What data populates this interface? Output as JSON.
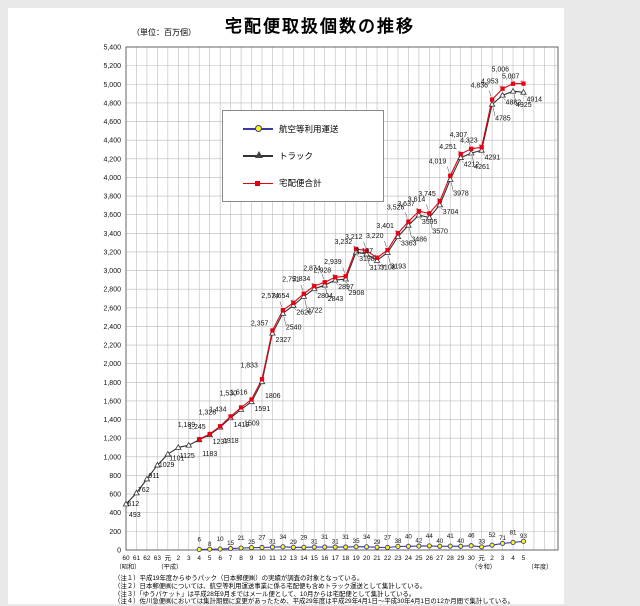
{
  "title": "宅配便取扱個数の推移",
  "unit_label": "（単位：百万個）",
  "legend": {
    "air": "航空等利用運送",
    "truck": "トラック",
    "total": "宅配便合計"
  },
  "x_axis": {
    "era_showa": "（昭和）",
    "era_heisei": "（平成）",
    "era_reiwa": "（令和）",
    "unit_suffix": "（年度）"
  },
  "colors": {
    "background": "#e9e9e9",
    "grid": "#bbbbbb",
    "total_line": "#e60012",
    "truck_line": "#333333",
    "air_line": "#3a3aa0",
    "air_marker_fill": "#ffff00"
  },
  "notes": [
    "（注１）平成19年度からゆうパック（日本郵便㈱）の実績が調査の対象となっている。",
    "（注２）日本郵便㈱については、航空等利用運送事業に係る宅配便も含めトラック運送として集計している。",
    "（注３）「ゆうパケット」は平成28年9月まではメール便として、10月からは宅配便として集計している。",
    "（注４）佐川急便㈱においては集計期間に変更があったため、平成29年度は平成29年4月1日～平成30年4月1日の12か月間で集計している。"
  ],
  "chart_data": {
    "type": "line",
    "title": "宅配便取扱個数の推移",
    "unit": "百万個",
    "ylim": [
      0,
      5400
    ],
    "y_step": 200,
    "grid": true,
    "legend_position": "upper-left-inside",
    "x_labels": [
      "60",
      "61",
      "62",
      "63",
      "元",
      "2",
      "3",
      "4",
      "5",
      "6",
      "7",
      "8",
      "9",
      "10",
      "11",
      "12",
      "13",
      "14",
      "15",
      "16",
      "17",
      "18",
      "19",
      "20",
      "21",
      "22",
      "23",
      "24",
      "25",
      "26",
      "27",
      "28",
      "29",
      "30",
      "元",
      "2",
      "3",
      "4",
      "5"
    ],
    "era_markers": [
      {
        "label": "（昭和）",
        "index": 0
      },
      {
        "label": "（平成）",
        "index": 4
      },
      {
        "label": "（令和）",
        "index": 34
      }
    ],
    "series": [
      {
        "name": "航空等利用運送",
        "marker": "circle",
        "line_color": "#3a3aa0",
        "marker_fill": "#ffff00",
        "start_index": 7,
        "values": [
          6,
          8,
          10,
          15,
          21,
          25,
          27,
          31,
          34,
          29,
          29,
          31,
          31,
          31,
          31,
          35,
          34,
          29,
          27,
          38,
          40,
          42,
          44,
          40,
          41,
          40,
          46,
          33,
          52,
          71,
          81,
          93
        ]
      },
      {
        "name": "トラック",
        "marker": "triangle",
        "line_color": "#333333",
        "marker_fill": "#ffffff",
        "start_index": 0,
        "values": [
          493,
          612,
          762,
          911,
          1029,
          1101,
          1125,
          1183,
          1237,
          1318,
          1419,
          1509,
          1591,
          1806,
          2327,
          2540,
          2626,
          2722,
          2804,
          2843,
          2897,
          2908,
          3198,
          3177,
          3108,
          3193,
          3363,
          3486,
          3595,
          3570,
          3704,
          3978,
          4212,
          4261,
          4291,
          4785,
          4882,
          4925,
          4914
        ]
      },
      {
        "name": "宅配便合計",
        "marker": "square",
        "line_color": "#e60012",
        "marker_fill": "#e60012",
        "start_index": 7,
        "values": [
          1189,
          1245,
          1328,
          1434,
          1530,
          1616,
          1833,
          2357,
          2574,
          2654,
          2751,
          2834,
          2874,
          2928,
          2939,
          3232,
          3212,
          3137,
          3220,
          3401,
          3526,
          3637,
          3614,
          3745,
          4019,
          4251,
          4307,
          4323,
          4836,
          4953,
          5006,
          5007
        ]
      }
    ]
  }
}
